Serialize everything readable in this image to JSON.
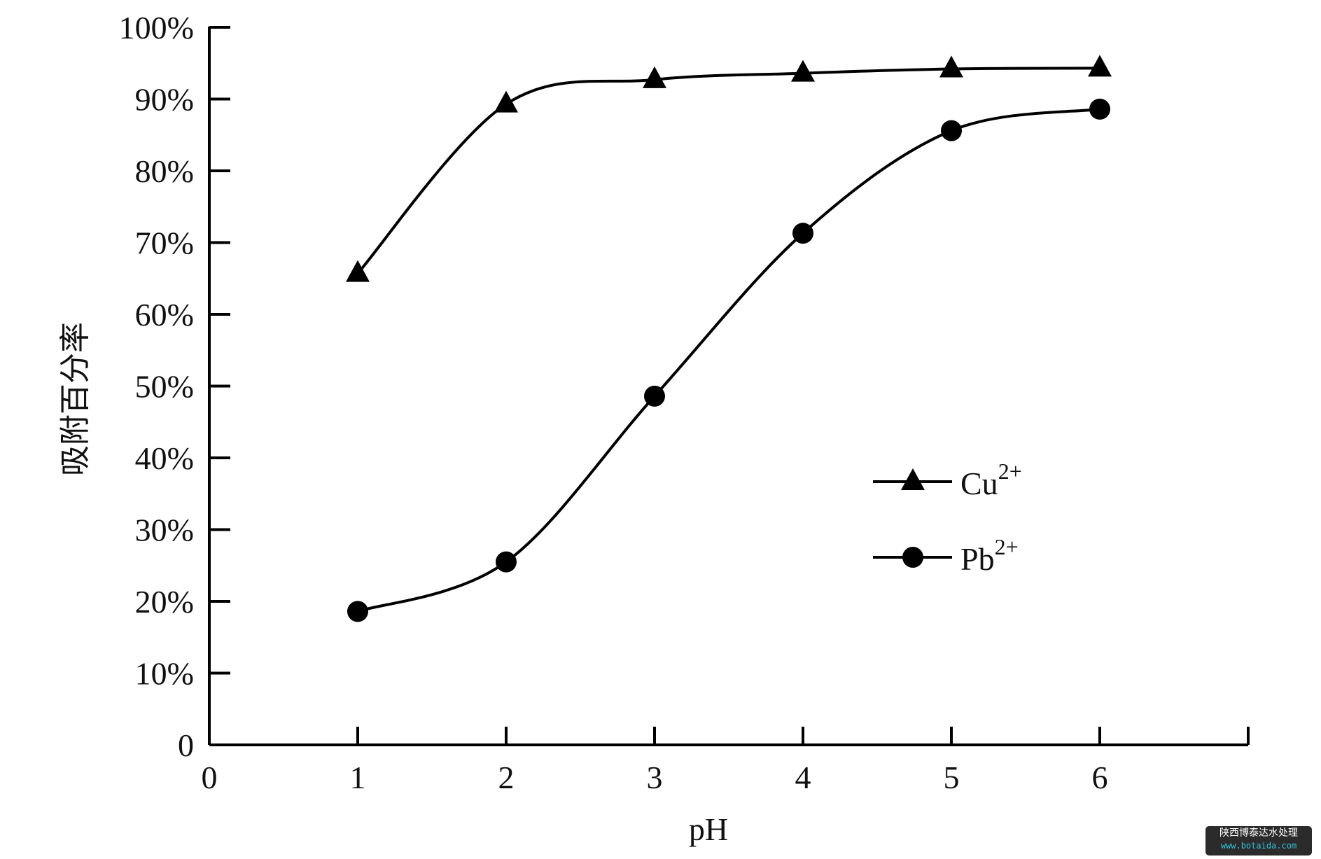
{
  "chart_data": {
    "type": "line",
    "xlabel": "pH",
    "ylabel": "吸附百分率",
    "xlim": [
      0,
      7
    ],
    "ylim": [
      0,
      100
    ],
    "x_ticks": [
      "0",
      "1",
      "2",
      "3",
      "4",
      "5",
      "6"
    ],
    "y_ticks": [
      "0",
      "10%",
      "20%",
      "30%",
      "40%",
      "50%",
      "60%",
      "70%",
      "80%",
      "90%",
      "100%"
    ],
    "x": [
      1,
      2,
      3,
      4,
      5,
      6
    ],
    "series": [
      {
        "name": "Cu",
        "superscript": "2+",
        "marker": "triangle",
        "values": [
          65.7,
          89.3,
          92.7,
          93.6,
          94.2,
          94.3
        ]
      },
      {
        "name": "Pb",
        "superscript": "2+",
        "marker": "circle",
        "values": [
          18.6,
          25.5,
          48.6,
          71.3,
          85.6,
          88.6
        ]
      }
    ],
    "legend_position": "right-middle",
    "grid": false,
    "line_color": "#000000"
  },
  "watermark": {
    "line1": "陕西博泰达水处理",
    "line2": "www.botaida.com"
  }
}
